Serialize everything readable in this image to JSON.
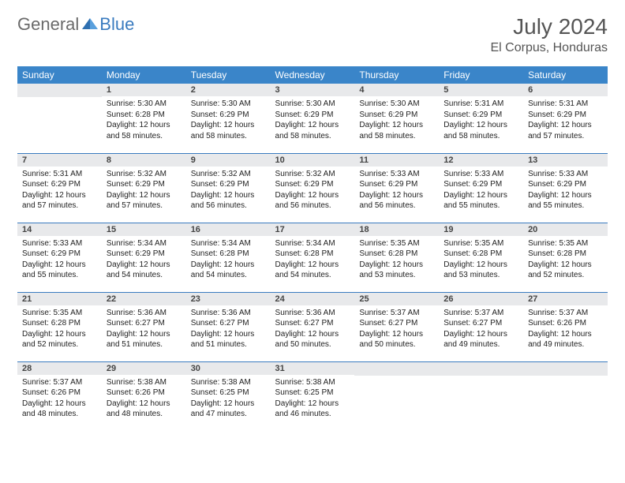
{
  "logo": {
    "general": "General",
    "blue": "Blue"
  },
  "header": {
    "month_title": "July 2024",
    "location": "El Corpus, Honduras"
  },
  "colors": {
    "header_bg": "#3a85c9",
    "rule": "#3a7bbf",
    "daynum_bg": "#e8e9eb"
  },
  "days_of_week": [
    "Sunday",
    "Monday",
    "Tuesday",
    "Wednesday",
    "Thursday",
    "Friday",
    "Saturday"
  ],
  "weeks": [
    [
      null,
      {
        "n": "1",
        "sunrise": "5:30 AM",
        "sunset": "6:28 PM",
        "daylight": "12 hours and 58 minutes."
      },
      {
        "n": "2",
        "sunrise": "5:30 AM",
        "sunset": "6:29 PM",
        "daylight": "12 hours and 58 minutes."
      },
      {
        "n": "3",
        "sunrise": "5:30 AM",
        "sunset": "6:29 PM",
        "daylight": "12 hours and 58 minutes."
      },
      {
        "n": "4",
        "sunrise": "5:30 AM",
        "sunset": "6:29 PM",
        "daylight": "12 hours and 58 minutes."
      },
      {
        "n": "5",
        "sunrise": "5:31 AM",
        "sunset": "6:29 PM",
        "daylight": "12 hours and 58 minutes."
      },
      {
        "n": "6",
        "sunrise": "5:31 AM",
        "sunset": "6:29 PM",
        "daylight": "12 hours and 57 minutes."
      }
    ],
    [
      {
        "n": "7",
        "sunrise": "5:31 AM",
        "sunset": "6:29 PM",
        "daylight": "12 hours and 57 minutes."
      },
      {
        "n": "8",
        "sunrise": "5:32 AM",
        "sunset": "6:29 PM",
        "daylight": "12 hours and 57 minutes."
      },
      {
        "n": "9",
        "sunrise": "5:32 AM",
        "sunset": "6:29 PM",
        "daylight": "12 hours and 56 minutes."
      },
      {
        "n": "10",
        "sunrise": "5:32 AM",
        "sunset": "6:29 PM",
        "daylight": "12 hours and 56 minutes."
      },
      {
        "n": "11",
        "sunrise": "5:33 AM",
        "sunset": "6:29 PM",
        "daylight": "12 hours and 56 minutes."
      },
      {
        "n": "12",
        "sunrise": "5:33 AM",
        "sunset": "6:29 PM",
        "daylight": "12 hours and 55 minutes."
      },
      {
        "n": "13",
        "sunrise": "5:33 AM",
        "sunset": "6:29 PM",
        "daylight": "12 hours and 55 minutes."
      }
    ],
    [
      {
        "n": "14",
        "sunrise": "5:33 AM",
        "sunset": "6:29 PM",
        "daylight": "12 hours and 55 minutes."
      },
      {
        "n": "15",
        "sunrise": "5:34 AM",
        "sunset": "6:29 PM",
        "daylight": "12 hours and 54 minutes."
      },
      {
        "n": "16",
        "sunrise": "5:34 AM",
        "sunset": "6:28 PM",
        "daylight": "12 hours and 54 minutes."
      },
      {
        "n": "17",
        "sunrise": "5:34 AM",
        "sunset": "6:28 PM",
        "daylight": "12 hours and 54 minutes."
      },
      {
        "n": "18",
        "sunrise": "5:35 AM",
        "sunset": "6:28 PM",
        "daylight": "12 hours and 53 minutes."
      },
      {
        "n": "19",
        "sunrise": "5:35 AM",
        "sunset": "6:28 PM",
        "daylight": "12 hours and 53 minutes."
      },
      {
        "n": "20",
        "sunrise": "5:35 AM",
        "sunset": "6:28 PM",
        "daylight": "12 hours and 52 minutes."
      }
    ],
    [
      {
        "n": "21",
        "sunrise": "5:35 AM",
        "sunset": "6:28 PM",
        "daylight": "12 hours and 52 minutes."
      },
      {
        "n": "22",
        "sunrise": "5:36 AM",
        "sunset": "6:27 PM",
        "daylight": "12 hours and 51 minutes."
      },
      {
        "n": "23",
        "sunrise": "5:36 AM",
        "sunset": "6:27 PM",
        "daylight": "12 hours and 51 minutes."
      },
      {
        "n": "24",
        "sunrise": "5:36 AM",
        "sunset": "6:27 PM",
        "daylight": "12 hours and 50 minutes."
      },
      {
        "n": "25",
        "sunrise": "5:37 AM",
        "sunset": "6:27 PM",
        "daylight": "12 hours and 50 minutes."
      },
      {
        "n": "26",
        "sunrise": "5:37 AM",
        "sunset": "6:27 PM",
        "daylight": "12 hours and 49 minutes."
      },
      {
        "n": "27",
        "sunrise": "5:37 AM",
        "sunset": "6:26 PM",
        "daylight": "12 hours and 49 minutes."
      }
    ],
    [
      {
        "n": "28",
        "sunrise": "5:37 AM",
        "sunset": "6:26 PM",
        "daylight": "12 hours and 48 minutes."
      },
      {
        "n": "29",
        "sunrise": "5:38 AM",
        "sunset": "6:26 PM",
        "daylight": "12 hours and 48 minutes."
      },
      {
        "n": "30",
        "sunrise": "5:38 AM",
        "sunset": "6:25 PM",
        "daylight": "12 hours and 47 minutes."
      },
      {
        "n": "31",
        "sunrise": "5:38 AM",
        "sunset": "6:25 PM",
        "daylight": "12 hours and 46 minutes."
      },
      null,
      null,
      null
    ]
  ],
  "labels": {
    "sunrise": "Sunrise:",
    "sunset": "Sunset:",
    "daylight": "Daylight:"
  }
}
